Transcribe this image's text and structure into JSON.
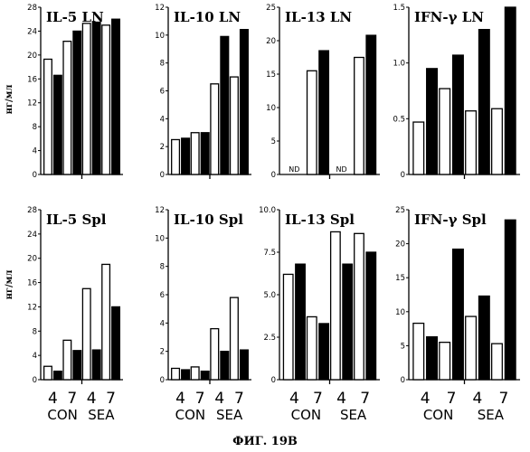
{
  "figure_caption": "ФИГ. 19B",
  "y_unit_label": "нг/мл",
  "x_labels": {
    "numbers": [
      "4",
      "7",
      "4",
      "7"
    ],
    "groups": [
      "CON",
      "SEA"
    ]
  },
  "colors": {
    "open_bar": "#ffffff",
    "filled_bar": "#000000",
    "ink": "#000000"
  },
  "chart_data": [
    {
      "type": "bar",
      "title": "IL-5 LN",
      "ylim": [
        0,
        28
      ],
      "yticks": [
        "0",
        "4",
        "8",
        "12",
        "16",
        "20",
        "24",
        "28"
      ],
      "categories": [
        "CON 4",
        "CON 7",
        "SEA 4",
        "SEA 7"
      ],
      "pairs": [
        [
          19.3,
          16.6
        ],
        [
          22.3,
          24.0
        ],
        [
          25.3,
          25.5
        ],
        [
          25.0,
          26.0
        ]
      ]
    },
    {
      "type": "bar",
      "title": "IL-10 LN",
      "ylim": [
        0,
        12
      ],
      "yticks": [
        "0",
        "2",
        "4",
        "6",
        "8",
        "10",
        "12"
      ],
      "categories": [
        "CON 4",
        "CON 7",
        "SEA 4",
        "SEA 7"
      ],
      "pairs": [
        [
          2.5,
          2.6
        ],
        [
          3.0,
          3.0
        ],
        [
          6.5,
          9.9
        ],
        [
          7.0,
          10.4
        ]
      ]
    },
    {
      "type": "bar",
      "title": "IL-13 LN",
      "ylim": [
        0,
        25
      ],
      "yticks": [
        "0",
        "5",
        "10",
        "15",
        "20",
        "25"
      ],
      "categories": [
        "CON 4",
        "CON 7",
        "SEA 4",
        "SEA 7"
      ],
      "pairs": [
        [
          null,
          null
        ],
        [
          15.5,
          18.5
        ],
        [
          null,
          null
        ],
        [
          17.5,
          20.8
        ]
      ],
      "annotations": [
        "ND",
        "ND"
      ]
    },
    {
      "type": "bar",
      "title": "IFN-γ LN",
      "ylim": [
        0,
        1.5
      ],
      "yticks": [
        "0",
        "0.5",
        "1.0",
        "1.5"
      ],
      "categories": [
        "CON 4",
        "CON 7",
        "SEA 4",
        "SEA 7"
      ],
      "pairs": [
        [
          0.47,
          0.95
        ],
        [
          0.77,
          1.07
        ],
        [
          0.57,
          1.3
        ],
        [
          0.59,
          1.5
        ]
      ]
    },
    {
      "type": "bar",
      "title": "IL-5 Spl",
      "ylim": [
        0,
        28
      ],
      "yticks": [
        "0",
        "4",
        "8",
        "12",
        "16",
        "20",
        "24",
        "28"
      ],
      "categories": [
        "CON 4",
        "CON 7",
        "SEA 4",
        "SEA 7"
      ],
      "pairs": [
        [
          2.2,
          1.4
        ],
        [
          6.5,
          4.8
        ],
        [
          15.0,
          4.9
        ],
        [
          19.0,
          12.0
        ]
      ]
    },
    {
      "type": "bar",
      "title": "IL-10 Spl",
      "ylim": [
        0,
        12
      ],
      "yticks": [
        "0",
        "2",
        "4",
        "6",
        "8",
        "10",
        "12"
      ],
      "categories": [
        "CON 4",
        "CON 7",
        "SEA 4",
        "SEA 7"
      ],
      "pairs": [
        [
          0.8,
          0.7
        ],
        [
          0.9,
          0.6
        ],
        [
          3.6,
          2.0
        ],
        [
          5.8,
          2.1
        ]
      ]
    },
    {
      "type": "bar",
      "title": "IL-13 Spl",
      "ylim": [
        0,
        10
      ],
      "yticks": [
        "0",
        "2.5",
        "5.0",
        "7.5",
        "10.0"
      ],
      "categories": [
        "CON 4",
        "CON 7",
        "SEA 4",
        "SEA 7"
      ],
      "pairs": [
        [
          6.2,
          6.8
        ],
        [
          3.7,
          3.3
        ],
        [
          8.7,
          6.8
        ],
        [
          8.6,
          7.5
        ]
      ]
    },
    {
      "type": "bar",
      "title": "IFN-γ Spl",
      "ylim": [
        0,
        25
      ],
      "yticks": [
        "0",
        "5",
        "10",
        "15",
        "20",
        "25"
      ],
      "categories": [
        "CON 4",
        "CON 7",
        "SEA 4",
        "SEA 7"
      ],
      "pairs": [
        [
          8.3,
          6.3
        ],
        [
          5.5,
          19.2
        ],
        [
          9.3,
          12.3
        ],
        [
          5.3,
          23.5
        ]
      ]
    }
  ]
}
